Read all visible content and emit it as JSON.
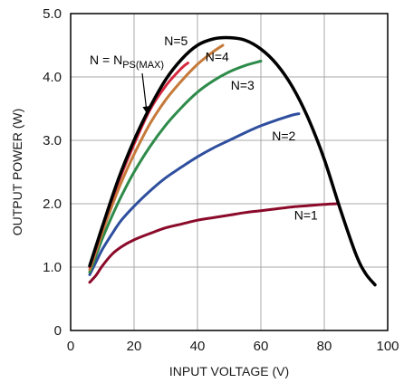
{
  "chart_data": {
    "type": "line",
    "xlabel": "INPUT VOLTAGE (V)",
    "ylabel": "OUTPUT POWER (W)",
    "xlim": [
      0,
      100
    ],
    "ylim": [
      0,
      5.0
    ],
    "xticks": [
      0,
      20,
      40,
      60,
      80,
      100
    ],
    "xtick_labels": [
      "0",
      "20",
      "40",
      "60",
      "80",
      "100"
    ],
    "yticks": [
      0,
      1.0,
      2.0,
      3.0,
      4.0,
      5.0
    ],
    "ytick_labels": [
      "0",
      "1.0",
      "2.0",
      "3.0",
      "4.0",
      "5.0"
    ],
    "grid": true,
    "series": [
      {
        "name": "N=1",
        "color": "#8b0a2a",
        "x": [
          6,
          8,
          10,
          13,
          16,
          20,
          25,
          30,
          35,
          40,
          45,
          50,
          55,
          60,
          65,
          70,
          75,
          80,
          84
        ],
        "y": [
          0.76,
          0.87,
          1.02,
          1.2,
          1.32,
          1.43,
          1.53,
          1.62,
          1.68,
          1.74,
          1.78,
          1.82,
          1.86,
          1.89,
          1.92,
          1.95,
          1.97,
          1.99,
          2.0
        ]
      },
      {
        "name": "N=2",
        "color": "#2f4f9e",
        "x": [
          6,
          8,
          10,
          13,
          16,
          20,
          25,
          30,
          35,
          40,
          45,
          50,
          55,
          60,
          65,
          70,
          72
        ],
        "y": [
          0.88,
          1.08,
          1.28,
          1.52,
          1.74,
          1.96,
          2.2,
          2.41,
          2.58,
          2.74,
          2.88,
          3.0,
          3.12,
          3.23,
          3.32,
          3.4,
          3.42
        ]
      },
      {
        "name": "N=3",
        "color": "#2e8b4a",
        "x": [
          6,
          8,
          10,
          13,
          16,
          20,
          25,
          30,
          35,
          40,
          45,
          50,
          55,
          60
        ],
        "y": [
          0.92,
          1.18,
          1.45,
          1.8,
          2.12,
          2.5,
          2.9,
          3.24,
          3.52,
          3.76,
          3.94,
          4.08,
          4.18,
          4.25
        ]
      },
      {
        "name": "N=4",
        "color": "#c57a3a",
        "x": [
          6,
          8,
          10,
          13,
          16,
          20,
          25,
          30,
          35,
          40,
          45,
          48
        ],
        "y": [
          0.96,
          1.25,
          1.55,
          1.96,
          2.34,
          2.78,
          3.26,
          3.64,
          3.94,
          4.2,
          4.4,
          4.5
        ]
      },
      {
        "name": "N=5",
        "color": "#d6283f",
        "x": [
          6,
          8,
          10,
          13,
          16,
          20,
          25,
          30,
          35,
          37
        ],
        "y": [
          1.0,
          1.3,
          1.62,
          2.06,
          2.46,
          2.94,
          3.48,
          3.86,
          4.14,
          4.22
        ]
      },
      {
        "name": "N = NPS(MAX)",
        "color": "#000000",
        "x": [
          6,
          10,
          15,
          20,
          25,
          30,
          35,
          40,
          45,
          50,
          55,
          60,
          65,
          70,
          75,
          80,
          85,
          90,
          93,
          96
        ],
        "y": [
          1.02,
          1.64,
          2.38,
          3.0,
          3.52,
          3.96,
          4.28,
          4.5,
          4.6,
          4.62,
          4.58,
          4.44,
          4.2,
          3.84,
          3.34,
          2.7,
          1.92,
          1.2,
          0.9,
          0.72
        ]
      }
    ],
    "annotations": [
      {
        "text": "N=5",
        "x": 29.5,
        "y": 4.5
      },
      {
        "text": "N=4",
        "x": 42.5,
        "y": 4.25
      },
      {
        "text": "N=3",
        "x": 50.5,
        "y": 3.8
      },
      {
        "text": "N=2",
        "x": 63.5,
        "y": 3.0
      },
      {
        "text": "N=1",
        "x": 70.5,
        "y": 1.75
      }
    ],
    "envelope_label": {
      "main": "N = N",
      "subscript": "PS(MAX)",
      "x": 6,
      "y": 4.2,
      "arrow_to": [
        24,
        3.45
      ]
    }
  }
}
